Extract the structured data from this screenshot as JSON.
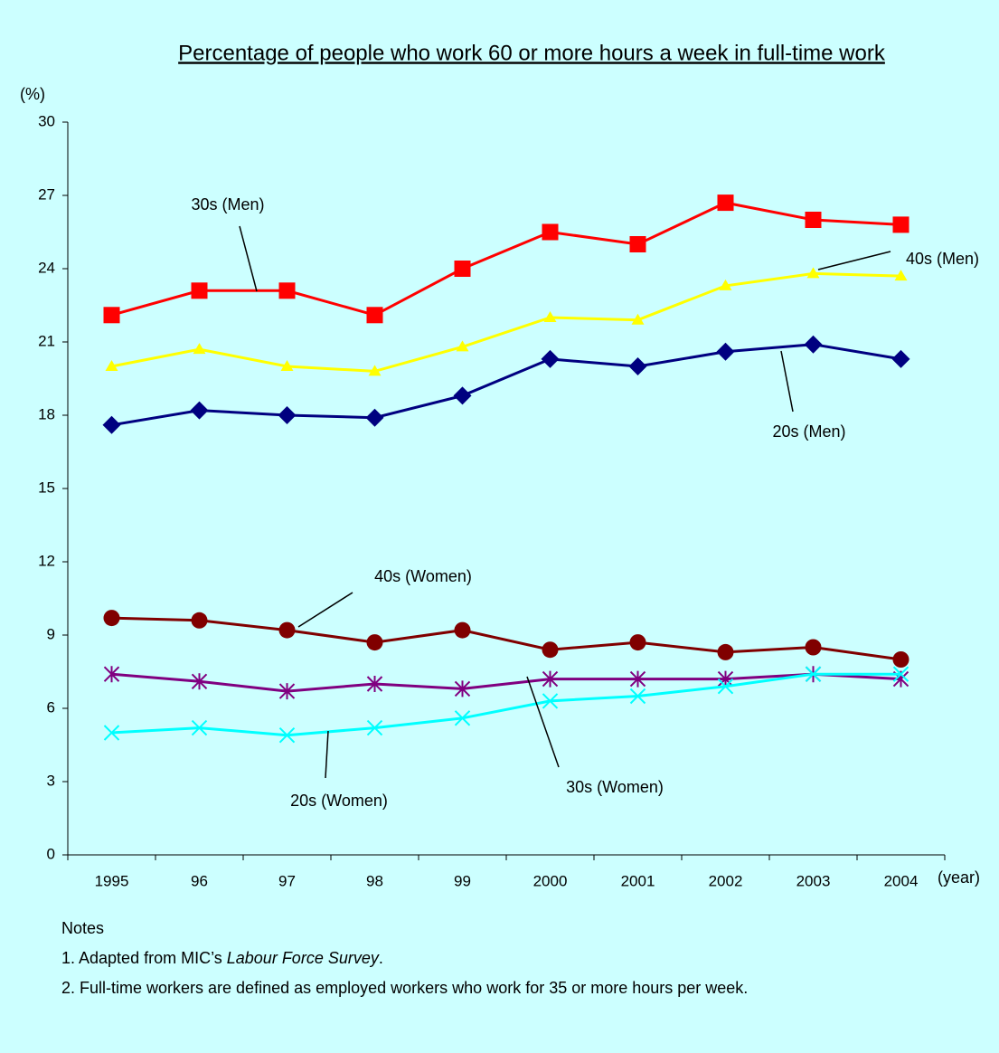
{
  "chart_data": {
    "type": "line",
    "title": "Percentage of people who work 60 or more hours a week in full-time work",
    "y_label": "(%)",
    "x_label": "(year)",
    "categories": [
      "1995",
      "96",
      "97",
      "98",
      "99",
      "2000",
      "2001",
      "2002",
      "2003",
      "2004"
    ],
    "ylim": [
      0,
      30
    ],
    "yticks": [
      0,
      3,
      6,
      9,
      12,
      15,
      18,
      21,
      24,
      27,
      30
    ],
    "grid": false,
    "series": [
      {
        "name": "30s (Men)",
        "color": "#ff0000",
        "marker": "square",
        "values": [
          22.1,
          23.1,
          23.1,
          22.1,
          24.0,
          25.5,
          25.0,
          26.7,
          26.0,
          25.8
        ]
      },
      {
        "name": "40s (Men)",
        "color": "#ffff00",
        "marker": "triangle",
        "values": [
          20.0,
          20.7,
          20.0,
          19.8,
          20.8,
          22.0,
          21.9,
          23.3,
          23.8,
          23.7
        ]
      },
      {
        "name": "20s (Men)",
        "color": "#000080",
        "marker": "diamond",
        "values": [
          17.6,
          18.2,
          18.0,
          17.9,
          18.8,
          20.3,
          20.0,
          20.6,
          20.9,
          20.3
        ]
      },
      {
        "name": "40s (Women)",
        "color": "#800000",
        "marker": "circle",
        "values": [
          9.7,
          9.6,
          9.2,
          8.7,
          9.2,
          8.4,
          8.7,
          8.3,
          8.5,
          8.0
        ]
      },
      {
        "name": "30s (Women)",
        "color": "#800080",
        "marker": "asterisk",
        "values": [
          7.4,
          7.1,
          6.7,
          7.0,
          6.8,
          7.2,
          7.2,
          7.2,
          7.4,
          7.2
        ]
      },
      {
        "name": "20s (Women)",
        "color": "#00ffff",
        "marker": "cross",
        "values": [
          5.0,
          5.2,
          4.9,
          5.2,
          5.6,
          6.3,
          6.5,
          6.9,
          7.4,
          7.4
        ]
      }
    ]
  },
  "notes": {
    "heading": "Notes",
    "item1": [
      "1. Adapted from MIC’s ",
      "Labour Force Survey",
      "."
    ],
    "item2": "2. Full-time workers are defined as employed workers who work for 35 or more hours per week."
  }
}
